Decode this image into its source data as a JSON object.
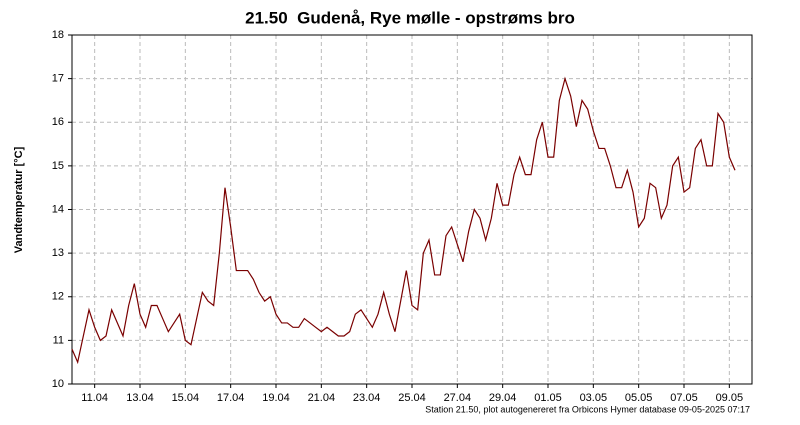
{
  "chart_data": {
    "type": "line",
    "title": "21.50  Gudenå, Rye mølle - opstrøms bro",
    "y_label": "Vandtemperatur [°C]",
    "footnote": "Station 21.50, plot autogenereret fra Orbicons Hymer database 09-05-2025 07:17",
    "categories": [
      null,
      null,
      null,
      null,
      "11.04",
      null,
      null,
      null,
      null,
      null,
      null,
      null,
      "13.04",
      null,
      null,
      null,
      null,
      null,
      null,
      null,
      "15.04",
      null,
      null,
      null,
      null,
      null,
      null,
      null,
      "17.04",
      null,
      null,
      null,
      null,
      null,
      null,
      null,
      "19.04",
      null,
      null,
      null,
      null,
      null,
      null,
      null,
      "21.04",
      null,
      null,
      null,
      null,
      null,
      null,
      null,
      "23.04",
      null,
      null,
      null,
      null,
      null,
      null,
      null,
      "25.04",
      null,
      null,
      null,
      null,
      null,
      null,
      null,
      "27.04",
      null,
      null,
      null,
      null,
      null,
      null,
      null,
      "29.04",
      null,
      null,
      null,
      null,
      null,
      null,
      null,
      "01.05",
      null,
      null,
      null,
      null,
      null,
      null,
      null,
      "03.05",
      null,
      null,
      null,
      null,
      null,
      null,
      null,
      "05.05",
      null,
      null,
      null,
      null,
      null,
      null,
      null,
      "07.05",
      null,
      null,
      null,
      null,
      null,
      null,
      null,
      "09.05",
      null,
      null,
      null,
      null
    ],
    "series": [
      {
        "color": "#7a0000",
        "values": [
          10.8,
          10.5,
          11.1,
          11.7,
          11.3,
          11.0,
          11.1,
          11.7,
          11.4,
          11.1,
          11.8,
          12.3,
          11.6,
          11.3,
          11.8,
          11.8,
          11.5,
          11.2,
          11.4,
          11.6,
          11.0,
          10.9,
          11.5,
          12.1,
          11.9,
          11.8,
          13.0,
          14.5,
          13.6,
          12.6,
          12.6,
          12.6,
          12.4,
          12.1,
          11.9,
          12.0,
          11.6,
          11.4,
          11.4,
          11.3,
          11.3,
          11.5,
          11.4,
          11.3,
          11.2,
          11.3,
          11.2,
          11.1,
          11.1,
          11.2,
          11.6,
          11.7,
          11.5,
          11.3,
          11.6,
          12.1,
          11.6,
          11.2,
          11.9,
          12.6,
          11.8,
          11.7,
          13.0,
          13.3,
          12.5,
          12.5,
          13.4,
          13.6,
          13.2,
          12.8,
          13.5,
          14.0,
          13.8,
          13.3,
          13.8,
          14.6,
          14.1,
          14.1,
          14.8,
          15.2,
          14.8,
          14.8,
          15.6,
          16.0,
          15.2,
          15.2,
          16.5,
          17.0,
          16.6,
          15.9,
          16.5,
          16.3,
          15.8,
          15.4,
          15.4,
          15.0,
          14.5,
          14.5,
          14.9,
          14.4,
          13.6,
          13.8,
          14.6,
          14.5,
          13.8,
          14.1,
          15.0,
          15.2,
          14.4,
          14.5,
          15.4,
          15.6,
          15.0,
          15.0,
          16.2,
          16.0,
          15.2,
          14.9,
          null,
          null,
          null
        ]
      }
    ],
    "ylim": [
      10,
      18
    ],
    "yticks": [
      10,
      11,
      12,
      13,
      14,
      15,
      16,
      17,
      18
    ],
    "grid": true
  }
}
